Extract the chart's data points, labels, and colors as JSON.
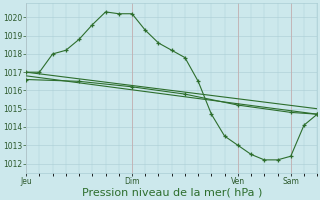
{
  "background_color": "#cce8ec",
  "grid_color": "#aacdd4",
  "line_color": "#2d6e2d",
  "xlabel": "Pression niveau de la mer( hPa )",
  "xlabel_fontsize": 8,
  "ylim": [
    1011.5,
    1020.8
  ],
  "yticks": [
    1012,
    1013,
    1014,
    1015,
    1016,
    1017,
    1018,
    1019,
    1020
  ],
  "xtick_labels": [
    "Jeu",
    "Dim",
    "Ven",
    "Sam"
  ],
  "xtick_positions": [
    0,
    48,
    96,
    120
  ],
  "total_hours": 132,
  "series1": {
    "x": [
      0,
      6,
      12,
      18,
      24,
      30,
      36,
      42,
      48,
      54,
      60,
      66,
      72,
      78,
      84,
      90,
      96,
      102,
      108,
      114,
      120,
      126,
      132
    ],
    "y": [
      1017.0,
      1017.0,
      1018.0,
      1018.2,
      1018.8,
      1019.6,
      1020.3,
      1020.2,
      1020.2,
      1019.3,
      1018.6,
      1018.2,
      1017.8,
      1016.5,
      1014.7,
      1013.5,
      1013.0,
      1012.5,
      1012.2,
      1012.2,
      1012.4,
      1014.1,
      1014.7
    ]
  },
  "series2": {
    "x": [
      0,
      132
    ],
    "y": [
      1017.0,
      1015.0
    ]
  },
  "series3": {
    "x": [
      0,
      132
    ],
    "y": [
      1016.8,
      1014.7
    ]
  },
  "series4": {
    "x": [
      0,
      24,
      48,
      72,
      96,
      120,
      132
    ],
    "y": [
      1016.6,
      1016.5,
      1016.2,
      1015.8,
      1015.2,
      1014.8,
      1014.7
    ]
  }
}
